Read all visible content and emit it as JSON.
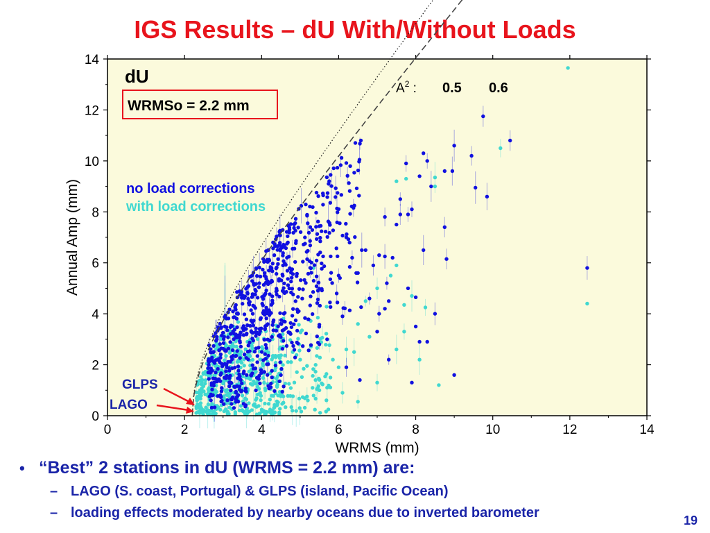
{
  "slide": {
    "title": "IGS Results – dU With/Without Loads",
    "page_number": "19",
    "bullets": [
      {
        "text": "“Best” 2 stations in dU (WRMS = 2.2 mm)  are:",
        "sub": [
          "LAGO (S. coast, Portugal) & GLPS (island, Pacific Ocean)",
          "loading effects moderated by nearby oceans due to inverted barometer"
        ]
      }
    ]
  },
  "colors": {
    "no_load": "#1010e0",
    "with_load": "#40d8d0",
    "plot_bg": "#fbfadc",
    "red": "#e8141c",
    "text_blue": "#1a24a8"
  },
  "chart_data": {
    "type": "scatter",
    "title": "",
    "panel_label": "dU",
    "wrmso_label": "WRMSo = 2.2 mm",
    "xlabel": "WRMS (mm)",
    "ylabel": "Annual Amp (mm)",
    "xlim": [
      0,
      14
    ],
    "ylim": [
      0,
      14
    ],
    "xticks": [
      0,
      2,
      4,
      6,
      8,
      10,
      12,
      14
    ],
    "yticks": [
      0,
      2,
      4,
      6,
      8,
      10,
      12,
      14
    ],
    "wrmso": 2.2,
    "a2_prefix": "A",
    "a2_sup": "2",
    "a2_suffix": " :",
    "curves": [
      {
        "label": "0.5",
        "A2": 0.5,
        "style": "dotted",
        "x_end": 9.0
      },
      {
        "label": "0.6",
        "A2": 0.6,
        "style": "dashed",
        "x_end": 9.85
      }
    ],
    "series": [
      {
        "name": "no load corrections",
        "color": "#1010e0",
        "points": [
          [
            12.45,
            5.8
          ],
          [
            10.45,
            10.8
          ],
          [
            9.75,
            11.75
          ],
          [
            9.45,
            10.2
          ],
          [
            9.0,
            10.6
          ],
          [
            9.55,
            8.95
          ],
          [
            9.85,
            8.6
          ],
          [
            8.75,
            9.6
          ],
          [
            8.95,
            9.6
          ],
          [
            8.3,
            10.0
          ],
          [
            8.2,
            10.3
          ],
          [
            8.4,
            9.0
          ],
          [
            7.75,
            9.9
          ],
          [
            7.8,
            7.9
          ],
          [
            8.75,
            7.4
          ],
          [
            8.8,
            6.15
          ],
          [
            8.2,
            6.5
          ],
          [
            7.6,
            7.9
          ],
          [
            7.5,
            7.5
          ],
          [
            7.2,
            7.8
          ],
          [
            7.2,
            6.25
          ],
          [
            7.05,
            6.3
          ],
          [
            7.25,
            5.2
          ],
          [
            6.7,
            6.5
          ],
          [
            6.6,
            6.5
          ],
          [
            6.9,
            5.9
          ],
          [
            7.4,
            6.2
          ],
          [
            7.8,
            5.0
          ],
          [
            8.0,
            4.65
          ],
          [
            7.2,
            4.2
          ],
          [
            7.3,
            4.5
          ],
          [
            7.05,
            4.0
          ],
          [
            8.5,
            4.0
          ],
          [
            8.0,
            3.5
          ],
          [
            8.1,
            2.9
          ],
          [
            8.3,
            2.9
          ],
          [
            7.9,
            1.3
          ],
          [
            6.55,
            1.4
          ],
          [
            9.0,
            1.6
          ],
          [
            7.9,
            8.1
          ],
          [
            7.6,
            8.5
          ],
          [
            8.1,
            9.4
          ],
          [
            6.8,
            4.6
          ],
          [
            6.5,
            5.6
          ],
          [
            6.2,
            7.0
          ],
          [
            6.35,
            6.2
          ],
          [
            6.0,
            5.5
          ],
          [
            5.95,
            4.8
          ],
          [
            6.1,
            3.9
          ],
          [
            5.7,
            3.0
          ],
          [
            5.5,
            2.8
          ],
          [
            6.2,
            1.9
          ],
          [
            7.0,
            3.3
          ],
          [
            7.3,
            2.2
          ]
        ],
        "cluster": [
          {
            "x": [
              2.6,
              3.6
            ],
            "ymin": 0.3,
            "ymaxk": 1.05,
            "n": 220
          },
          {
            "x": [
              3.6,
              4.6
            ],
            "ymin": 0.9,
            "ymaxk": 1.02,
            "n": 240
          },
          {
            "x": [
              4.6,
              5.6
            ],
            "ymin": 2.2,
            "ymaxk": 1.0,
            "n": 150
          },
          {
            "x": [
              5.6,
              6.6
            ],
            "ymin": 3.6,
            "ymaxk": 0.99,
            "n": 70
          }
        ]
      },
      {
        "name": "with load corrections",
        "color": "#40d8d0",
        "points": [
          [
            11.95,
            13.65
          ],
          [
            12.45,
            4.4
          ],
          [
            10.2,
            10.5
          ],
          [
            8.5,
            9.35
          ],
          [
            8.5,
            9.0
          ],
          [
            7.75,
            9.3
          ],
          [
            7.5,
            9.2
          ],
          [
            8.6,
            1.2
          ],
          [
            8.25,
            4.25
          ],
          [
            7.9,
            4.7
          ],
          [
            7.7,
            4.35
          ],
          [
            7.5,
            5.9
          ],
          [
            7.35,
            5.5
          ],
          [
            7.0,
            5.0
          ],
          [
            6.7,
            4.5
          ],
          [
            6.8,
            3.1
          ],
          [
            6.5,
            3.6
          ],
          [
            6.4,
            2.5
          ],
          [
            6.2,
            2.6
          ],
          [
            6.0,
            1.9
          ],
          [
            5.85,
            2.2
          ],
          [
            6.5,
            0.55
          ],
          [
            7.0,
            1.3
          ],
          [
            7.5,
            2.6
          ],
          [
            7.7,
            3.3
          ],
          [
            8.1,
            2.2
          ],
          [
            5.5,
            1.0
          ],
          [
            5.4,
            1.4
          ],
          [
            5.7,
            1.1
          ],
          [
            6.1,
            0.9
          ],
          [
            5.2,
            0.6
          ],
          [
            5.0,
            2.2
          ],
          [
            4.8,
            0.2
          ],
          [
            5.35,
            5.8
          ]
        ],
        "cluster": [
          {
            "x": [
              2.3,
              3.4
            ],
            "ymin": 0.05,
            "ymaxk": 0.9,
            "n": 230
          },
          {
            "x": [
              3.4,
              4.6
            ],
            "ymin": 0.05,
            "ymaxk": 0.55,
            "n": 210
          },
          {
            "x": [
              4.6,
              5.8
            ],
            "ymin": 0.1,
            "ymaxk": 0.45,
            "n": 70
          }
        ]
      }
    ],
    "annotations": [
      {
        "label": "GLPS",
        "x": 2.25,
        "y": 0.55
      },
      {
        "label": "LAGO",
        "x": 2.22,
        "y": 0.18
      }
    ]
  }
}
